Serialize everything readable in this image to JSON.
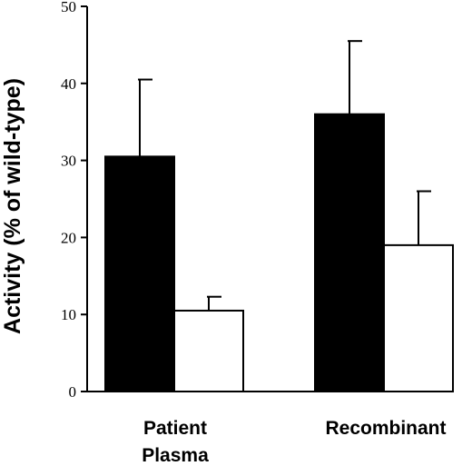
{
  "chart_data": {
    "type": "bar",
    "title": "",
    "xlabel": "",
    "ylabel": "Activity (% of wild-type)",
    "ylim": [
      0,
      50
    ],
    "yticks": [
      0,
      10,
      20,
      30,
      40,
      50
    ],
    "grid": false,
    "categories": [
      {
        "lines": [
          "Patient",
          "Plasma"
        ]
      },
      {
        "lines": [
          "Recombinant"
        ]
      }
    ],
    "series": [
      {
        "fill": "#000000",
        "values": [
          30.5,
          36.0
        ],
        "error": [
          10.0,
          9.5
        ]
      },
      {
        "fill": "#ffffff",
        "values": [
          10.5,
          19.0
        ],
        "error": [
          1.8,
          7.0
        ]
      }
    ]
  }
}
